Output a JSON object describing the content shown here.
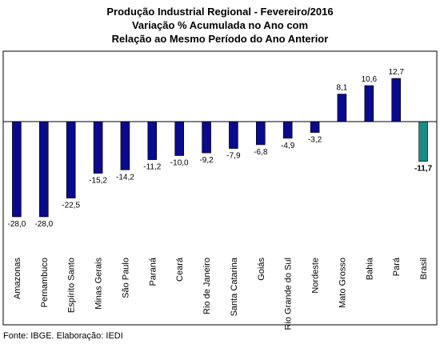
{
  "chart_data": {
    "type": "bar",
    "title": "Produção Industrial Regional - Fevereiro/2016",
    "subtitle_lines": [
      "Variação % Acumulada no Ano com",
      "Relação ao Mesmo Período do Ano Anterior"
    ],
    "categories": [
      "Amazonas",
      "Pernambuco",
      "Espírito Santo",
      "Minas Gerais",
      "São Paulo",
      "Paraná",
      "Ceará",
      "Rio de Janeiro",
      "Santa Catarina",
      "Goiás",
      "Rio Grande do Sul",
      "Nordeste",
      "Mato Grosso",
      "Bahia",
      "Pará",
      "Brasil"
    ],
    "values": [
      -28.0,
      -28.0,
      -22.5,
      -15.2,
      -14.2,
      -11.2,
      -10.0,
      -9.2,
      -7.9,
      -6.8,
      -4.9,
      -3.2,
      8.1,
      10.6,
      12.7,
      -11.7
    ],
    "value_labels": [
      "-28,0",
      "-28,0",
      "-22,5",
      "-15,2",
      "-14,2",
      "-11,2",
      "-10,0",
      "-9,2",
      "-7,9",
      "-6,8",
      "-4,9",
      "-3,2",
      "8,1",
      "10,6",
      "12,7",
      "-11,7"
    ],
    "ylim": [
      -30,
      15
    ],
    "grid": false,
    "legend": "none",
    "colors": {
      "regional": "#0a0a8c",
      "national": "#1a8c84",
      "border": "#000000"
    },
    "highlight_category": "Brasil"
  },
  "footer": {
    "source": "Fonte: IBGE. Elaboração: IEDI"
  }
}
